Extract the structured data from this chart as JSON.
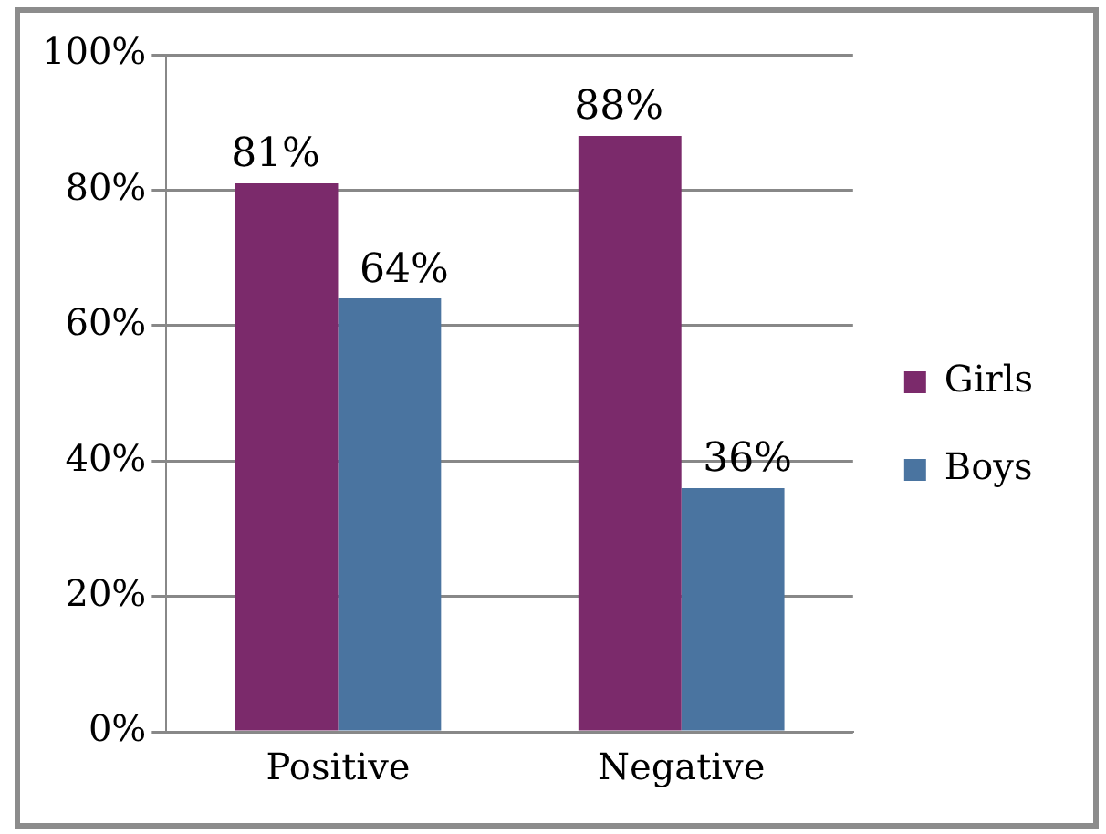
{
  "chart_data": {
    "type": "bar",
    "categories": [
      "Positive",
      "Negative"
    ],
    "series": [
      {
        "name": "Girls",
        "color": "#7b2a6b",
        "values": [
          81,
          88
        ],
        "value_labels": [
          "81%",
          "88%"
        ]
      },
      {
        "name": "Boys",
        "color": "#4a74a0",
        "values": [
          64,
          36
        ],
        "value_labels": [
          "64%",
          "36%"
        ]
      }
    ],
    "ylim": [
      0,
      100
    ],
    "yticks": [
      {
        "value": 0,
        "label": "0%"
      },
      {
        "value": 20,
        "label": "20%"
      },
      {
        "value": 40,
        "label": "40%"
      },
      {
        "value": 60,
        "label": "60%"
      },
      {
        "value": 80,
        "label": "80%"
      },
      {
        "value": 100,
        "label": "100%"
      }
    ],
    "grid": "y",
    "legend": "right"
  }
}
